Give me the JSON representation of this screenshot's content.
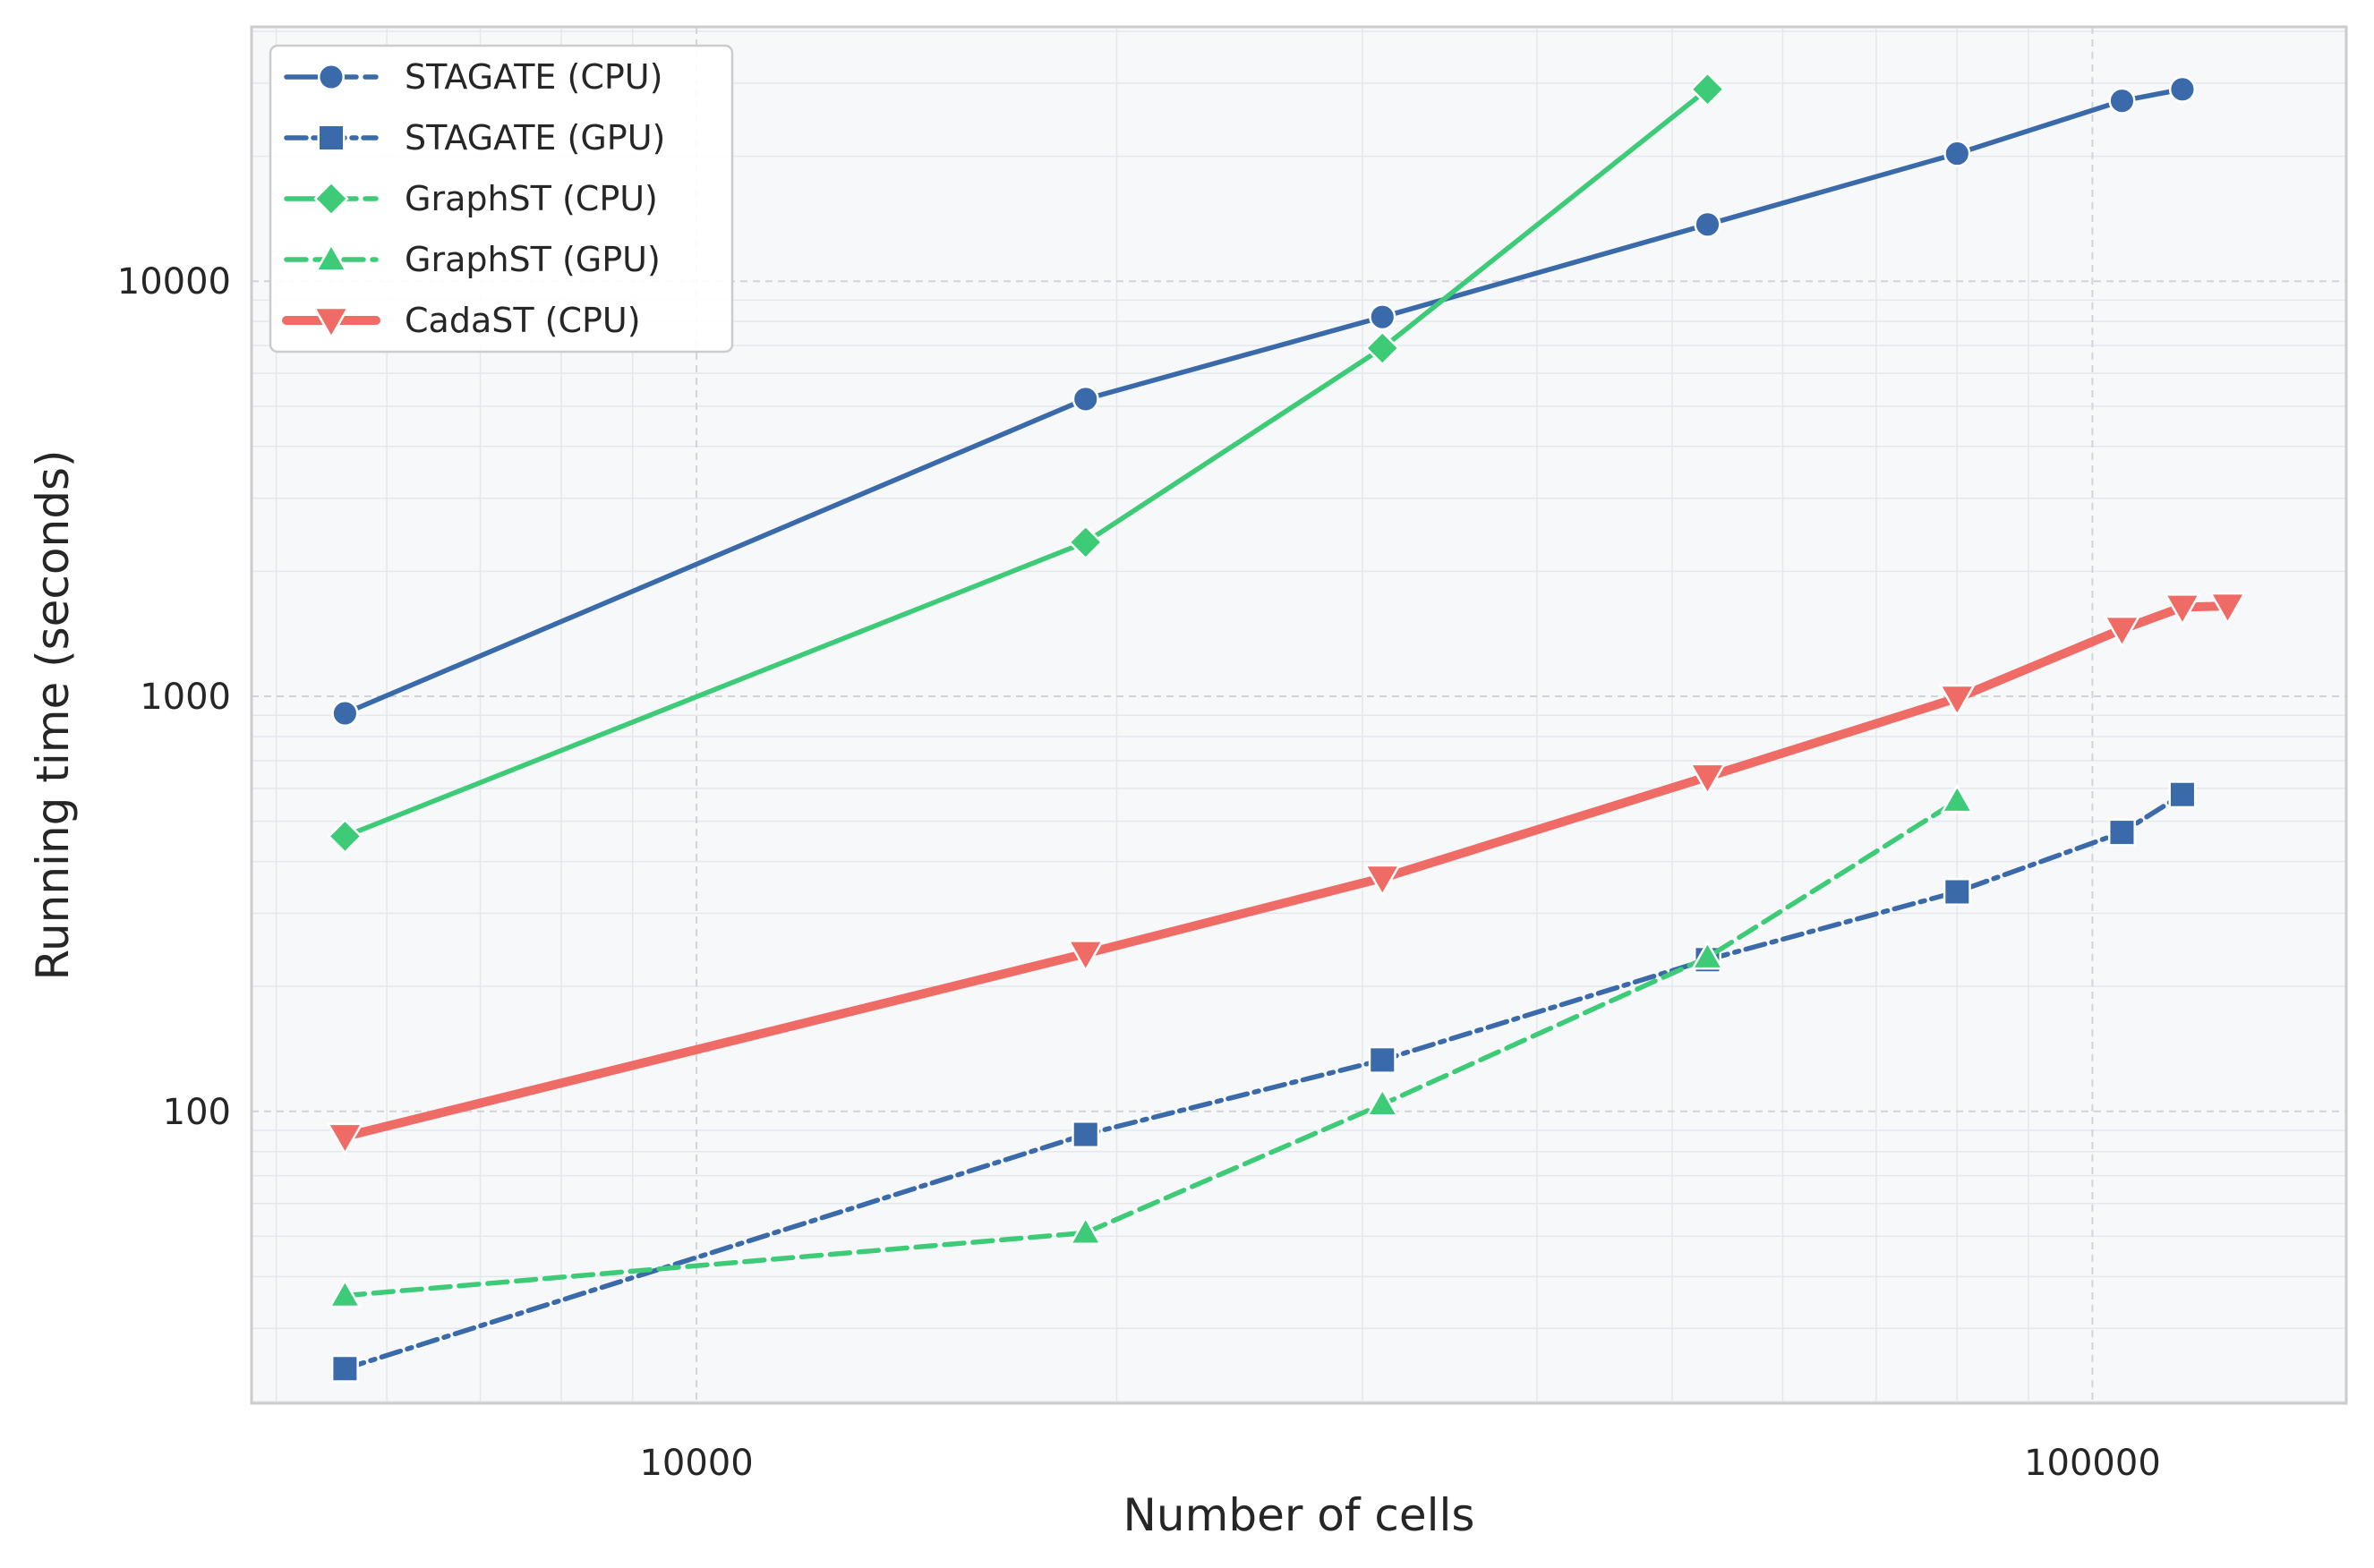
{
  "chart_data": {
    "type": "line",
    "title": "",
    "xlabel": "Number of cells",
    "ylabel": "Running time (seconds)",
    "xscale": "log",
    "yscale": "log",
    "xlim": [
      4800,
      152000
    ],
    "ylim": [
      19.8,
      41000
    ],
    "grid": true,
    "legend_position": "top-left",
    "x_ticks": [
      10000,
      100000
    ],
    "x_tick_labels": [
      "10000",
      "100000"
    ],
    "y_ticks": [
      100,
      1000,
      10000
    ],
    "y_tick_labels": [
      "100",
      "1000",
      "10000"
    ],
    "series": [
      {
        "name": "STAGATE (CPU)",
        "color": "#3a6aa9",
        "marker": "circle",
        "line_style": "solid",
        "points": [
          [
            5600,
            910
          ],
          [
            19000,
            5200
          ],
          [
            31000,
            8200
          ],
          [
            53000,
            13700
          ],
          [
            80000,
            20300
          ],
          [
            105000,
            27200
          ],
          [
            116000,
            29000
          ]
        ]
      },
      {
        "name": "STAGATE (GPU)",
        "color": "#3a6aa9",
        "marker": "square",
        "line_style": "dashdot",
        "points": [
          [
            5600,
            24
          ],
          [
            19000,
            88
          ],
          [
            31000,
            133
          ],
          [
            53000,
            232
          ],
          [
            80000,
            338
          ],
          [
            105000,
            470
          ],
          [
            116000,
            580
          ]
        ]
      },
      {
        "name": "GraphST (CPU)",
        "color": "#3ecb78",
        "marker": "diamond",
        "line_style": "solid",
        "points": [
          [
            5600,
            460
          ],
          [
            19000,
            2350
          ],
          [
            31000,
            6900
          ],
          [
            53000,
            29000
          ]
        ]
      },
      {
        "name": "GraphST (GPU)",
        "color": "#3ecb78",
        "marker": "triangle-up",
        "line_style": "dashed",
        "points": [
          [
            5600,
            36
          ],
          [
            19000,
            51
          ],
          [
            31000,
            104
          ],
          [
            53000,
            235
          ],
          [
            80000,
            560
          ]
        ]
      },
      {
        "name": "CadaST (CPU)",
        "color": "#ef6b65",
        "marker": "triangle-down",
        "line_style": "solid-thick",
        "points": [
          [
            5600,
            87
          ],
          [
            19000,
            240
          ],
          [
            31000,
            365
          ],
          [
            53000,
            640
          ],
          [
            80000,
            990
          ],
          [
            105000,
            1450
          ],
          [
            116000,
            1640
          ],
          [
            125000,
            1650
          ]
        ]
      }
    ]
  }
}
